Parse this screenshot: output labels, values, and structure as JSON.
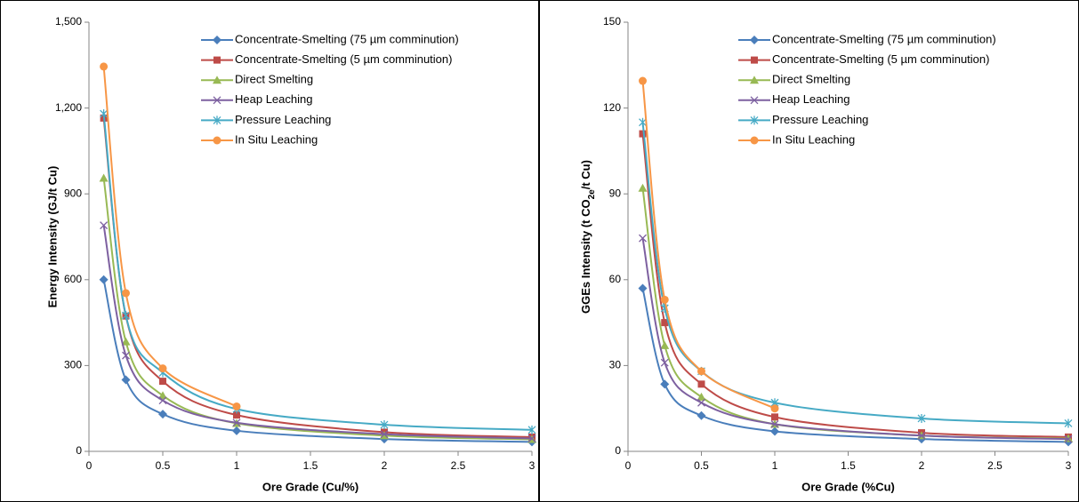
{
  "chart_data": [
    {
      "type": "line",
      "x_label": "Ore Grade (Cu/%)",
      "y_label": "Energy Intensity (GJ/t Cu)",
      "x": [
        0.1,
        0.25,
        0.5,
        1,
        2,
        3
      ],
      "xlim": [
        0,
        3
      ],
      "xticks": [
        0,
        0.5,
        1,
        1.5,
        2,
        2.5,
        3
      ],
      "ylim": [
        0,
        1500
      ],
      "yticks": [
        0,
        300,
        600,
        900,
        {
          "value": 1200,
          "label": "1,200"
        },
        {
          "value": 1500,
          "label": "1,500"
        }
      ],
      "legend": "upper right",
      "series": [
        {
          "name": "Concentrate-Smelting (75 µm comminution)",
          "color": "#4a7ebb",
          "marker": "diamond",
          "values": [
            600,
            250,
            130,
            72,
            43,
            33
          ]
        },
        {
          "name": "Concentrate-Smelting (5 µm comminution)",
          "color": "#be4b48",
          "marker": "square",
          "values": [
            1165,
            473,
            245,
            127,
            67,
            50
          ]
        },
        {
          "name": "Direct Smelting",
          "color": "#98b954",
          "marker": "triangle",
          "values": [
            955,
            383,
            195,
            98,
            55,
            42
          ]
        },
        {
          "name": "Heap Leaching",
          "color": "#7d60a0",
          "marker": "x",
          "values": [
            790,
            335,
            178,
            100,
            60,
            45
          ]
        },
        {
          "name": "Pressure Leaching",
          "color": "#46aac5",
          "marker": "star",
          "values": [
            1180,
            475,
            275,
            148,
            93,
            75
          ]
        },
        {
          "name": "In Situ Leaching",
          "color": "#f79646",
          "marker": "circle",
          "values": [
            1345,
            553,
            290,
            157,
            null,
            null
          ]
        }
      ]
    },
    {
      "type": "line",
      "x_label": "Ore Grade (%Cu)",
      "y_label": [
        "GGEs Intensity (t CO",
        "2e",
        "/t Cu)"
      ],
      "x": [
        0.1,
        0.25,
        0.5,
        1,
        2,
        3
      ],
      "xlim": [
        0,
        3
      ],
      "xticks": [
        0,
        0.5,
        1,
        1.5,
        2,
        2.5,
        3
      ],
      "ylim": [
        0,
        150
      ],
      "yticks": [
        0,
        30,
        60,
        90,
        120,
        150
      ],
      "legend": "upper right",
      "series": [
        {
          "name": "Concentrate-Smelting (75 µm comminution)",
          "color": "#4a7ebb",
          "marker": "diamond",
          "values": [
            57,
            23.5,
            12.5,
            7,
            4.3,
            3.3
          ]
        },
        {
          "name": "Concentrate-Smelting (5 µm comminution)",
          "color": "#be4b48",
          "marker": "square",
          "values": [
            111,
            45,
            23.5,
            12,
            6.5,
            5
          ]
        },
        {
          "name": "Direct Smelting",
          "color": "#98b954",
          "marker": "triangle",
          "values": [
            92,
            37,
            19,
            9.5,
            5.5,
            4.5
          ]
        },
        {
          "name": "Heap Leaching",
          "color": "#7d60a0",
          "marker": "x",
          "values": [
            74.5,
            31,
            17,
            9.5,
            5.5,
            4.3
          ]
        },
        {
          "name": "Pressure Leaching",
          "color": "#46aac5",
          "marker": "star",
          "values": [
            115,
            50,
            28,
            17,
            11.5,
            9.8
          ]
        },
        {
          "name": "In Situ Leaching",
          "color": "#f79646",
          "marker": "circle",
          "values": [
            129.5,
            53,
            28,
            15,
            null,
            null
          ]
        }
      ]
    }
  ]
}
